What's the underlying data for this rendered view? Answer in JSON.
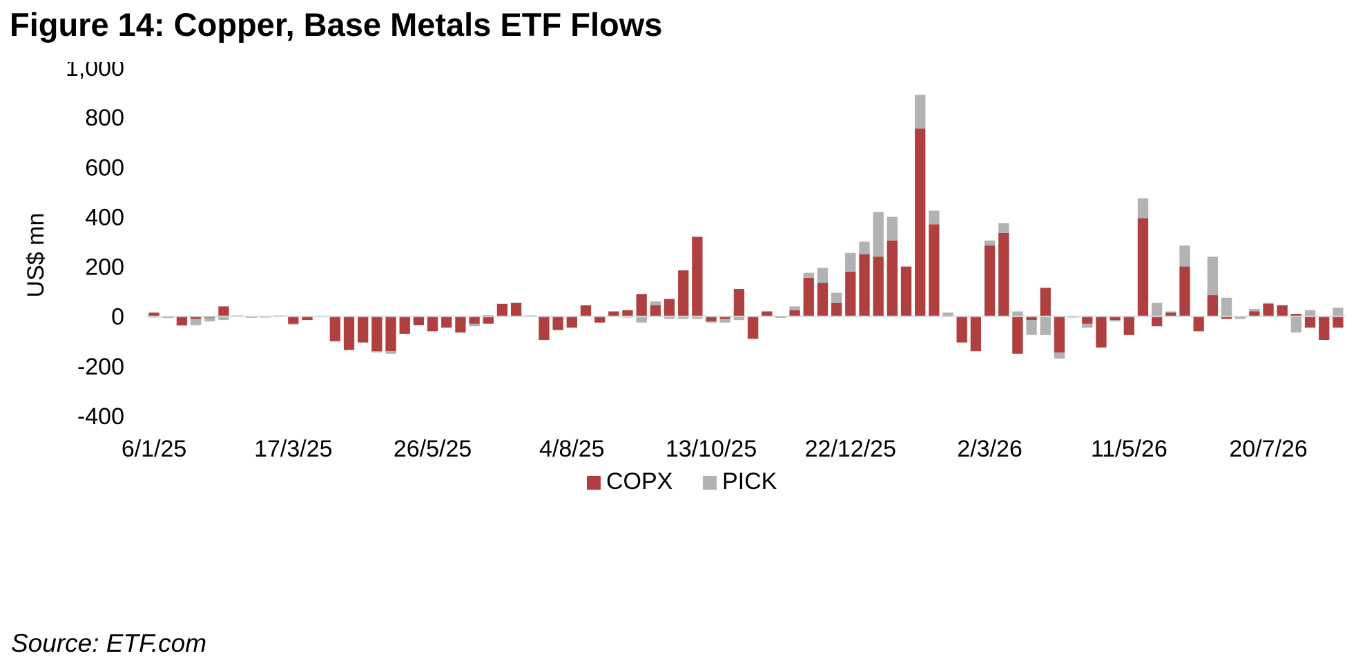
{
  "figure": {
    "title": "Figure 14: Copper, Base Metals ETF Flows",
    "source": "Source: ETF.com"
  },
  "chart_data": {
    "type": "bar",
    "stacked": true,
    "ylabel": "US$ mn",
    "ylim": [
      -400,
      1000
    ],
    "yticks": [
      "1,000",
      "800",
      "600",
      "400",
      "200",
      "0",
      "-200",
      "-400"
    ],
    "ytick_values": [
      1000,
      800,
      600,
      400,
      200,
      0,
      -200,
      -400
    ],
    "xtick_labels": [
      "6/1/25",
      "17/3/25",
      "26/5/25",
      "4/8/25",
      "13/10/25",
      "22/12/25",
      "2/3/26",
      "11/5/26",
      "20/7/26"
    ],
    "xtick_indices": [
      0,
      10,
      20,
      30,
      40,
      50,
      60,
      70,
      80
    ],
    "grid": false,
    "legend_position": "bottom",
    "series": [
      {
        "name": "COPX",
        "color": "#b0403f",
        "values": [
          15,
          -2,
          -35,
          -10,
          -5,
          40,
          3,
          -3,
          -2,
          3,
          -30,
          -15,
          0,
          -100,
          -135,
          -105,
          -140,
          -140,
          -70,
          -35,
          -60,
          -45,
          -65,
          -30,
          -30,
          50,
          55,
          3,
          -95,
          -55,
          -45,
          45,
          -25,
          20,
          25,
          90,
          45,
          70,
          185,
          320,
          -20,
          -10,
          110,
          -90,
          20,
          -5,
          25,
          155,
          135,
          55,
          180,
          250,
          240,
          305,
          200,
          755,
          370,
          0,
          -105,
          -140,
          285,
          335,
          -150,
          -15,
          115,
          -145,
          0,
          -30,
          -125,
          -15,
          -75,
          395,
          -40,
          15,
          200,
          -60,
          85,
          -10,
          0,
          20,
          50,
          45,
          10,
          -45,
          -95,
          -45
        ]
      },
      {
        "name": "PICK",
        "color": "#b2b2b2",
        "values": [
          -5,
          -5,
          -3,
          -25,
          -15,
          -15,
          0,
          -3,
          -3,
          0,
          -3,
          0,
          -3,
          0,
          0,
          0,
          -5,
          -10,
          0,
          0,
          0,
          0,
          0,
          -10,
          5,
          0,
          0,
          0,
          0,
          0,
          0,
          0,
          0,
          0,
          -5,
          -25,
          15,
          -10,
          -10,
          -10,
          -5,
          -15,
          -15,
          0,
          0,
          0,
          15,
          20,
          60,
          40,
          75,
          50,
          180,
          95,
          0,
          135,
          55,
          15,
          0,
          0,
          20,
          40,
          20,
          -60,
          -75,
          -25,
          -5,
          -15,
          0,
          -5,
          0,
          80,
          55,
          5,
          85,
          0,
          155,
          75,
          -10,
          10,
          5,
          0,
          -65,
          25,
          0,
          35
        ]
      }
    ]
  }
}
